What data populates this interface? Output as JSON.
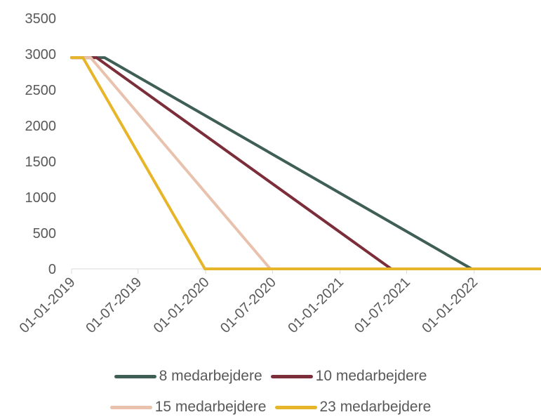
{
  "chart_data": {
    "type": "line",
    "title": "",
    "xlabel": "",
    "ylabel": "",
    "ylim": [
      0,
      3500
    ],
    "yticks": [
      0,
      500,
      1000,
      1500,
      2000,
      2500,
      3000,
      3500
    ],
    "xlim": [
      "2019-01-01",
      "2022-06-30"
    ],
    "xticks": [
      "01-01-2019",
      "01-07-2019",
      "01-01-2020",
      "01-07-2020",
      "01-01-2021",
      "01-07-2021",
      "01-01-2022"
    ],
    "grid": false,
    "legend_position": "bottom",
    "series": [
      {
        "name": "8 medarbejdere",
        "color": "#3f5f56",
        "points": [
          [
            "2019-01-01",
            2950
          ],
          [
            "2019-04-01",
            2950
          ],
          [
            "2021-12-25",
            0
          ],
          [
            "2022-06-30",
            0
          ]
        ]
      },
      {
        "name": "10 medarbejdere",
        "color": "#7b2e3a",
        "points": [
          [
            "2019-01-01",
            2950
          ],
          [
            "2019-03-10",
            2950
          ],
          [
            "2021-05-20",
            0
          ],
          [
            "2022-06-30",
            0
          ]
        ]
      },
      {
        "name": "15 medarbejdere",
        "color": "#e8c2ad",
        "points": [
          [
            "2019-01-01",
            2950
          ],
          [
            "2019-02-22",
            2950
          ],
          [
            "2020-06-25",
            0
          ],
          [
            "2022-06-30",
            0
          ]
        ]
      },
      {
        "name": "23 medarbejdere",
        "color": "#e6b52a",
        "points": [
          [
            "2019-01-01",
            2950
          ],
          [
            "2019-02-01",
            2950
          ],
          [
            "2019-12-30",
            0
          ],
          [
            "2022-06-30",
            0
          ]
        ]
      }
    ]
  }
}
